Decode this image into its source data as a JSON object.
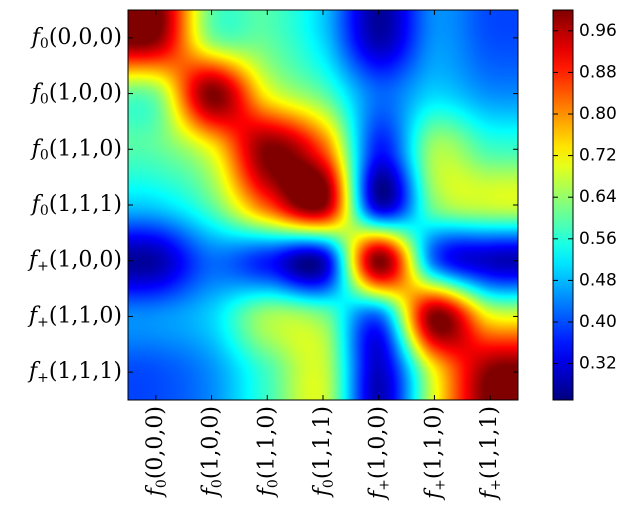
{
  "chart_data": {
    "type": "heatmap",
    "title": "",
    "xlabel": "",
    "ylabel": "",
    "x_tick_labels": [
      {
        "fn": "f",
        "sub": "0",
        "args": "(0,0,0)"
      },
      {
        "fn": "f",
        "sub": "0",
        "args": "(1,0,0)"
      },
      {
        "fn": "f",
        "sub": "0",
        "args": "(1,1,0)"
      },
      {
        "fn": "f",
        "sub": "0",
        "args": "(1,1,1)"
      },
      {
        "fn": "f",
        "sub": "+",
        "args": "(1,0,0)"
      },
      {
        "fn": "f",
        "sub": "+",
        "args": "(1,1,0)"
      },
      {
        "fn": "f",
        "sub": "+",
        "args": "(1,1,1)"
      }
    ],
    "y_tick_labels": [
      {
        "fn": "f",
        "sub": "0",
        "args": "(0,0,0)"
      },
      {
        "fn": "f",
        "sub": "0",
        "args": "(1,0,0)"
      },
      {
        "fn": "f",
        "sub": "0",
        "args": "(1,1,0)"
      },
      {
        "fn": "f",
        "sub": "0",
        "args": "(1,1,1)"
      },
      {
        "fn": "f",
        "sub": "+",
        "args": "(1,0,0)"
      },
      {
        "fn": "f",
        "sub": "+",
        "args": "(1,1,0)"
      },
      {
        "fn": "f",
        "sub": "+",
        "args": "(1,1,1)"
      }
    ],
    "values": [
      [
        1.0,
        0.63,
        0.6,
        0.5,
        0.28,
        0.45,
        0.4
      ],
      [
        0.63,
        1.0,
        0.72,
        0.6,
        0.42,
        0.5,
        0.45
      ],
      [
        0.6,
        0.72,
        1.0,
        0.85,
        0.36,
        0.65,
        0.58
      ],
      [
        0.5,
        0.6,
        0.85,
        1.0,
        0.3,
        0.62,
        0.68
      ],
      [
        0.28,
        0.42,
        0.36,
        0.3,
        1.0,
        0.42,
        0.3
      ],
      [
        0.45,
        0.5,
        0.65,
        0.62,
        0.42,
        1.0,
        0.72
      ],
      [
        0.4,
        0.45,
        0.58,
        0.68,
        0.3,
        0.72,
        1.0
      ]
    ],
    "colormap": "jet",
    "interpolation": "bicubic",
    "color_range": [
      0.25,
      1.0
    ],
    "colorbar_ticks": [
      "0.96",
      "0.88",
      "0.80",
      "0.72",
      "0.64",
      "0.56",
      "0.48",
      "0.40",
      "0.32"
    ],
    "grid": false,
    "colorbar_position": "right"
  }
}
